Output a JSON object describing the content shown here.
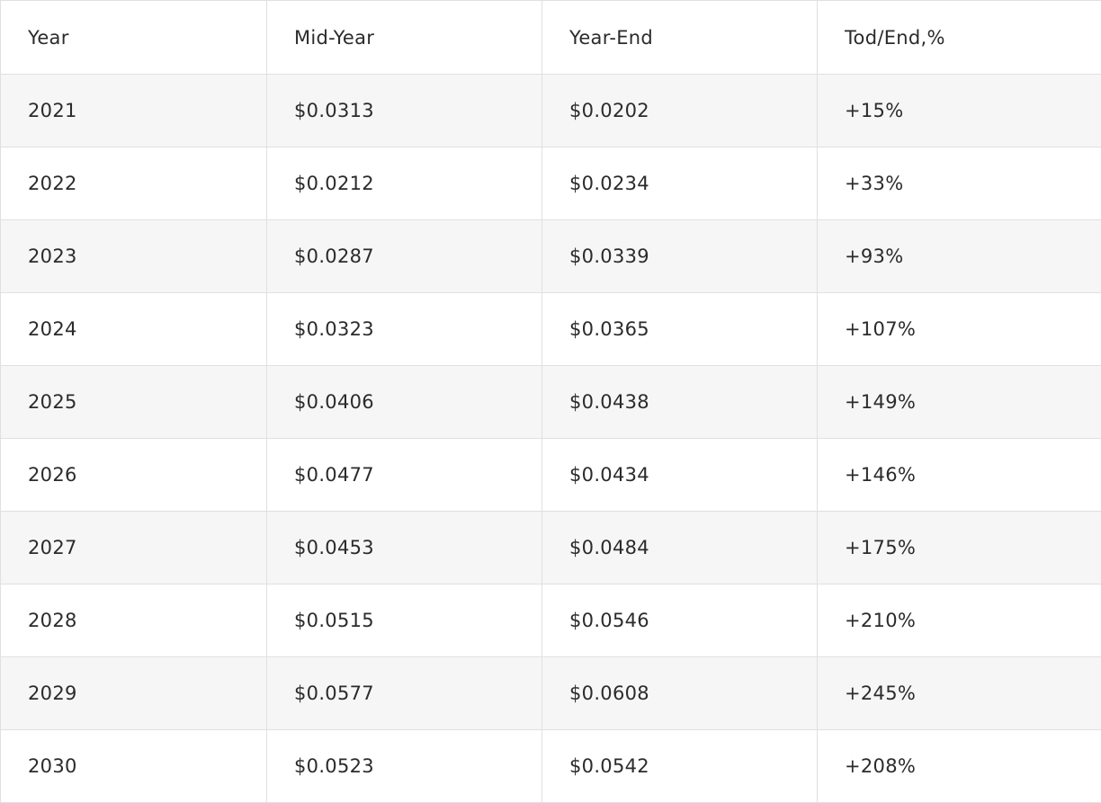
{
  "colors": {
    "row_alt_background": "#f6f6f6",
    "row_background": "#ffffff",
    "border": "#e0e0e0",
    "text": "#2b2b2b"
  },
  "table": {
    "headers": [
      "Year",
      "Mid-Year",
      "Year-End",
      "Tod/End,%"
    ],
    "rows": [
      {
        "year": "2021",
        "mid_year": "$0.0313",
        "year_end": "$0.0202",
        "tod_end": "+15%"
      },
      {
        "year": "2022",
        "mid_year": "$0.0212",
        "year_end": "$0.0234",
        "tod_end": "+33%"
      },
      {
        "year": "2023",
        "mid_year": "$0.0287",
        "year_end": "$0.0339",
        "tod_end": "+93%"
      },
      {
        "year": "2024",
        "mid_year": "$0.0323",
        "year_end": "$0.0365",
        "tod_end": "+107%"
      },
      {
        "year": "2025",
        "mid_year": "$0.0406",
        "year_end": "$0.0438",
        "tod_end": "+149%"
      },
      {
        "year": "2026",
        "mid_year": "$0.0477",
        "year_end": "$0.0434",
        "tod_end": "+146%"
      },
      {
        "year": "2027",
        "mid_year": "$0.0453",
        "year_end": "$0.0484",
        "tod_end": "+175%"
      },
      {
        "year": "2028",
        "mid_year": "$0.0515",
        "year_end": "$0.0546",
        "tod_end": "+210%"
      },
      {
        "year": "2029",
        "mid_year": "$0.0577",
        "year_end": "$0.0608",
        "tod_end": "+245%"
      },
      {
        "year": "2030",
        "mid_year": "$0.0523",
        "year_end": "$0.0542",
        "tod_end": "+208%"
      }
    ]
  },
  "chart_data": {
    "type": "table",
    "columns": [
      "Year",
      "Mid-Year",
      "Year-End",
      "Tod/End,%"
    ],
    "categories": [
      "2021",
      "2022",
      "2023",
      "2024",
      "2025",
      "2026",
      "2027",
      "2028",
      "2029",
      "2030"
    ],
    "series": [
      {
        "name": "Mid-Year",
        "values": [
          0.0313,
          0.0212,
          0.0287,
          0.0323,
          0.0406,
          0.0477,
          0.0453,
          0.0515,
          0.0577,
          0.0523
        ]
      },
      {
        "name": "Year-End",
        "values": [
          0.0202,
          0.0234,
          0.0339,
          0.0365,
          0.0438,
          0.0434,
          0.0484,
          0.0546,
          0.0608,
          0.0542
        ]
      },
      {
        "name": "Tod/End,%",
        "values": [
          15,
          33,
          93,
          107,
          149,
          146,
          175,
          210,
          245,
          208
        ]
      }
    ],
    "title": "",
    "xlabel": "",
    "ylabel": "",
    "value_unit_price": "USD ($)",
    "value_unit_change": "percent (%)"
  }
}
